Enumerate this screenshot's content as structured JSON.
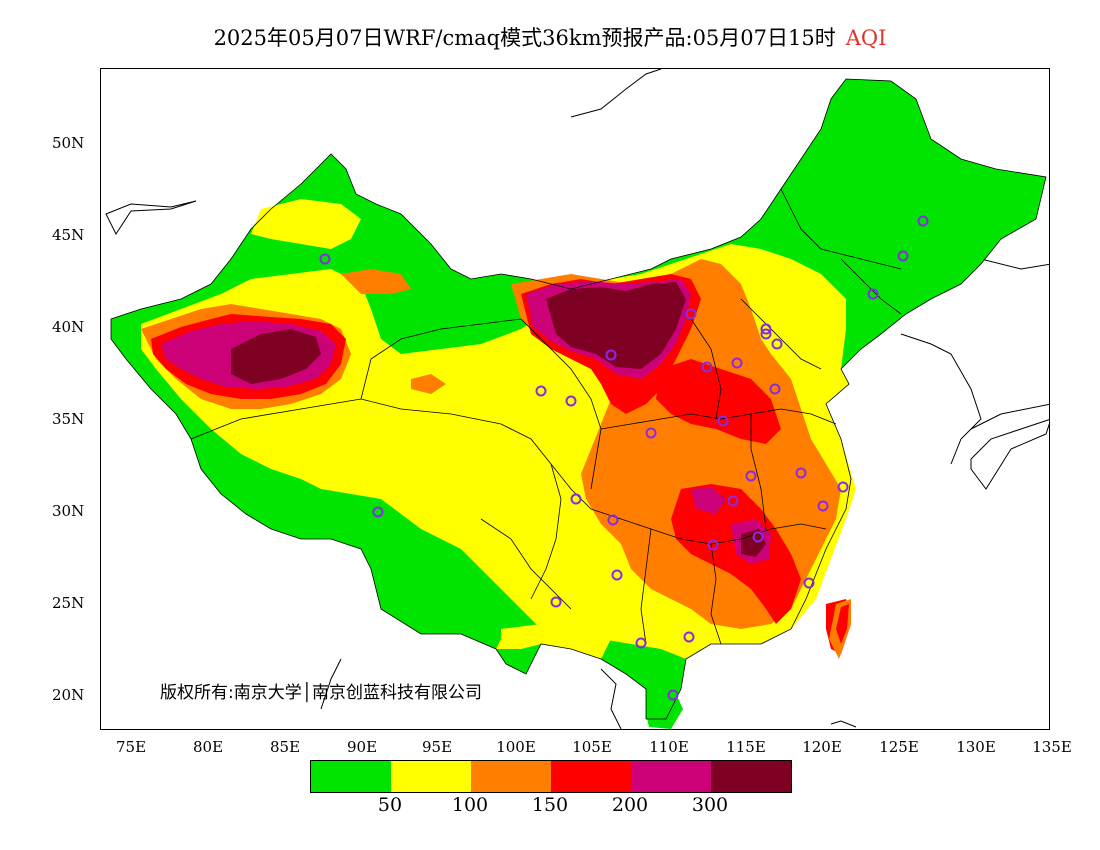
{
  "title": {
    "text": "2025年05月07日WRF/cmaq模式36km预报产品:05月07日15时",
    "variable": "AQI"
  },
  "copyright": "版权所有:南京大学│南京创蓝科技有限公司",
  "lat_labels": [
    "50N",
    "45N",
    "40N",
    "35N",
    "30N",
    "25N",
    "20N"
  ],
  "lon_labels": [
    "75E",
    "80E",
    "85E",
    "90E",
    "95E",
    "100E",
    "105E",
    "110E",
    "115E",
    "120E",
    "125E",
    "130E",
    "135E"
  ],
  "legend": {
    "colors": [
      "#00e400",
      "#ffff00",
      "#ff7e00",
      "#ff0000",
      "#cc0077",
      "#7e0023"
    ],
    "labels": [
      "50",
      "100",
      "150",
      "200",
      "300"
    ]
  },
  "map_colors": {
    "good": "#00e400",
    "moderate": "#ffff00",
    "usg": "#ff7e00",
    "unhealthy": "#ff0000",
    "very_unhealthy": "#cc0077",
    "hazardous": "#7e0023",
    "station": "#8a2be2"
  }
}
